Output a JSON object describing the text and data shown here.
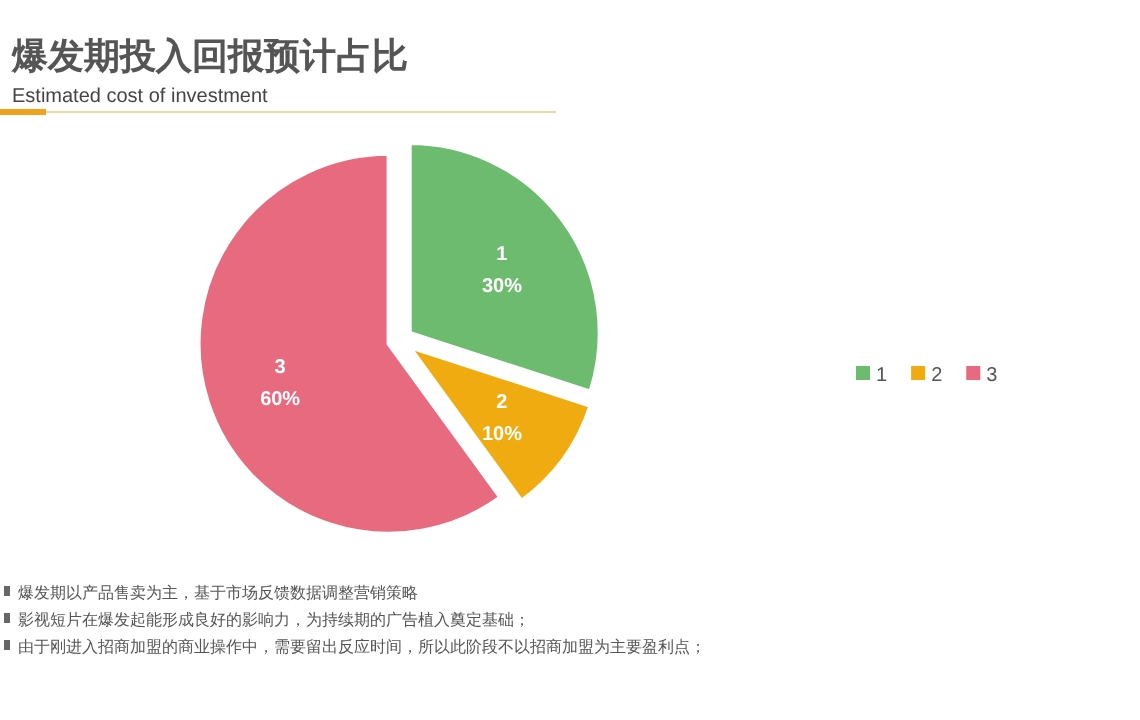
{
  "chart_data": {
    "type": "pie",
    "title": "爆发期投入回报预计占比",
    "subtitle": "Estimated cost of investment",
    "categories": [
      "1",
      "2",
      "3"
    ],
    "values": [
      30,
      10,
      60
    ],
    "colors": [
      "#6dbb6e",
      "#efab10",
      "#e76a7e"
    ],
    "value_labels": [
      "30%",
      "10%",
      "60%"
    ],
    "legend": "right",
    "annotations": [
      "爆发期以产品售卖为主，基于市场反馈数据调整营销策略",
      "影视短片在爆发起能形成良好的影响力，为持续期的广告植入奠定基础；",
      "由于刚进入招商加盟的商业操作中，需要留出反应时间，所以此阶段不以招商加盟为主要盈利点；"
    ]
  }
}
